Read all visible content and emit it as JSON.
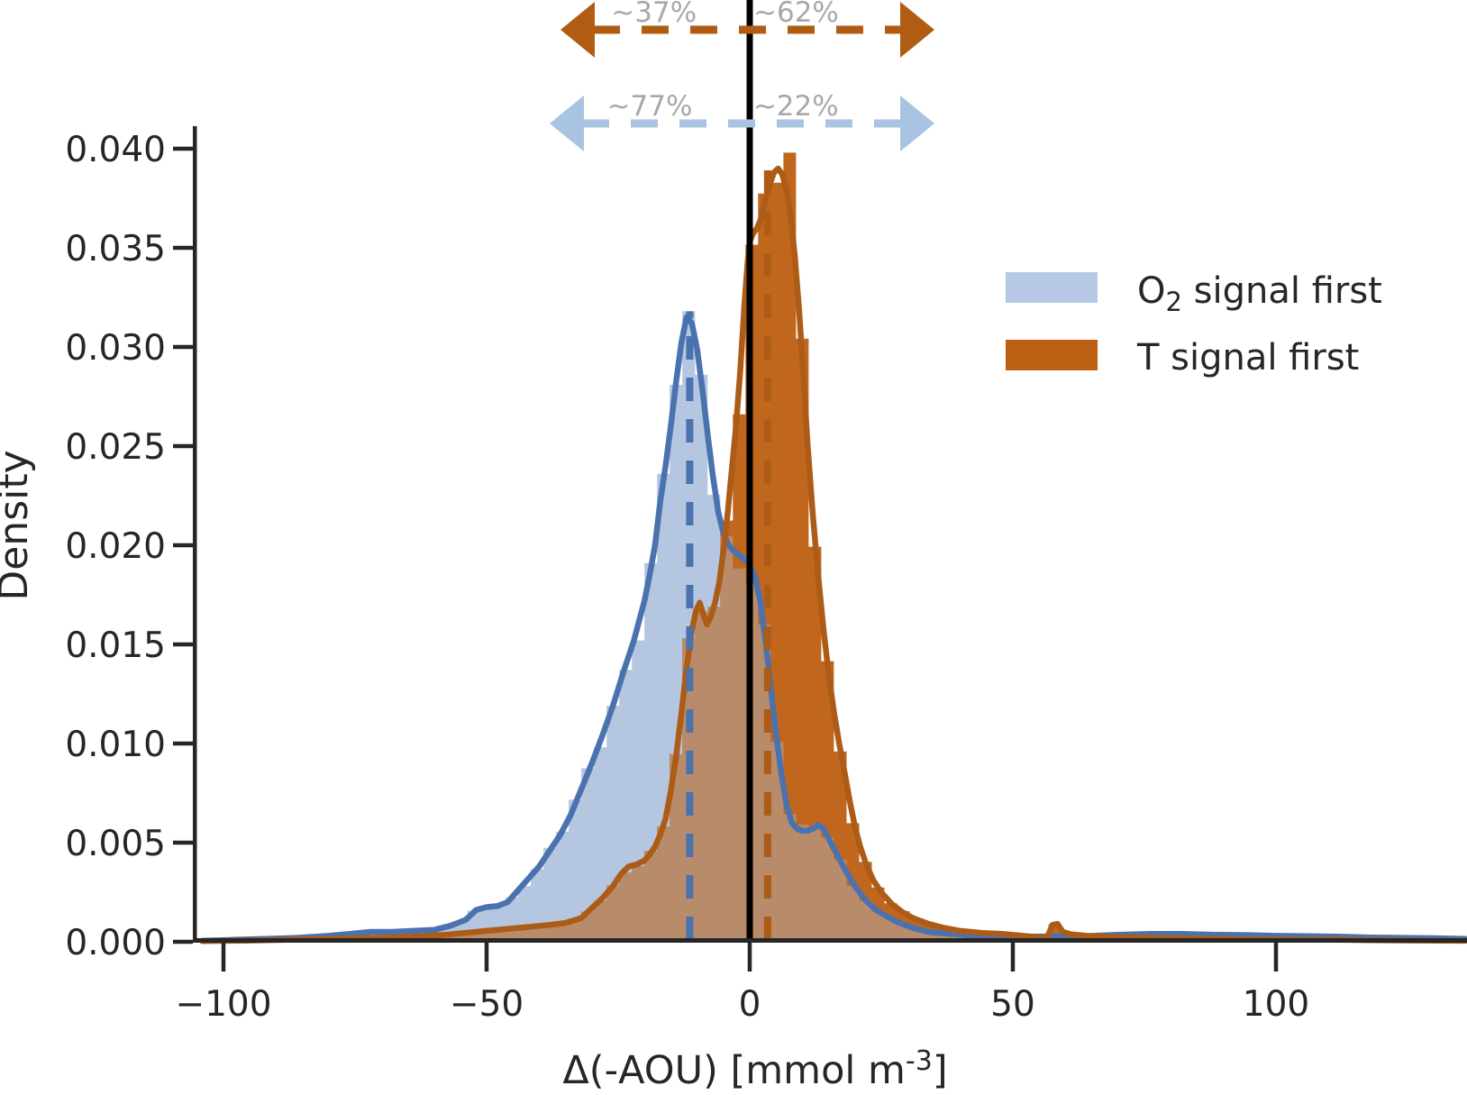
{
  "chart_data": {
    "type": "area",
    "title": "",
    "xlabel": {
      "prefix": "Δ(-AOU) [mmol m",
      "sup": "-3",
      "suffix": "]"
    },
    "ylabel": "Density",
    "xlim": [
      -105,
      136.5
    ],
    "ylim": [
      0,
      0.0415
    ],
    "grid": false,
    "legend_position": "upper right",
    "reference_line_x": 0,
    "overlap_color": "#b88c6a",
    "annotation_text_color": "#a8a8a8",
    "axis_color": "#262626",
    "xticks": [
      {
        "v": -100,
        "label": "−100"
      },
      {
        "v": -50,
        "label": "−50"
      },
      {
        "v": 0,
        "label": "0"
      },
      {
        "v": 50,
        "label": "50"
      },
      {
        "v": 100,
        "label": "100"
      }
    ],
    "yticks": [
      {
        "v": 0.0,
        "label": "0.000"
      },
      {
        "v": 0.005,
        "label": "0.005"
      },
      {
        "v": 0.01,
        "label": "0.010"
      },
      {
        "v": 0.015,
        "label": "0.015"
      },
      {
        "v": 0.02,
        "label": "0.020"
      },
      {
        "v": 0.025,
        "label": "0.025"
      },
      {
        "v": 0.03,
        "label": "0.030"
      },
      {
        "v": 0.035,
        "label": "0.035"
      },
      {
        "v": 0.04,
        "label": "0.040"
      }
    ],
    "series": [
      {
        "id": "o2",
        "name": "O2 signal first",
        "line_color": "#4a72ae",
        "fill_color": "#b5c6e0",
        "legend_swatch": "#b6c8e3",
        "arrow_color": "#a9c3e2",
        "median_x": -11.4,
        "median_top": 0.0318,
        "hist_peak": 0.0318,
        "annotation": {
          "left": "~77%",
          "right": "~22%"
        },
        "kde": [
          [
            -104,
            5e-05
          ],
          [
            -98,
            0.0001
          ],
          [
            -92,
            0.00015
          ],
          [
            -86,
            0.0002
          ],
          [
            -80,
            0.0003
          ],
          [
            -76,
            0.0004
          ],
          [
            -72,
            0.0005
          ],
          [
            -68,
            0.0005
          ],
          [
            -64,
            0.00055
          ],
          [
            -60,
            0.0006
          ],
          [
            -57,
            0.0008
          ],
          [
            -54,
            0.0011
          ],
          [
            -52,
            0.0016
          ],
          [
            -50,
            0.00175
          ],
          [
            -48,
            0.0018
          ],
          [
            -46,
            0.002
          ],
          [
            -44,
            0.0026
          ],
          [
            -42,
            0.0032
          ],
          [
            -40,
            0.0038
          ],
          [
            -38,
            0.0046
          ],
          [
            -36,
            0.0054
          ],
          [
            -34,
            0.0064
          ],
          [
            -32,
            0.0077
          ],
          [
            -30,
            0.009
          ],
          [
            -28,
            0.0104
          ],
          [
            -26,
            0.0119
          ],
          [
            -24,
            0.0136
          ],
          [
            -22,
            0.0152
          ],
          [
            -20,
            0.0172
          ],
          [
            -19,
            0.0185
          ],
          [
            -18,
            0.02
          ],
          [
            -17,
            0.0222
          ],
          [
            -16,
            0.024
          ],
          [
            -15,
            0.026
          ],
          [
            -14,
            0.0282
          ],
          [
            -13,
            0.0302
          ],
          [
            -12,
            0.0315
          ],
          [
            -11,
            0.0312
          ],
          [
            -10,
            0.0299
          ],
          [
            -9,
            0.0279
          ],
          [
            -8,
            0.0256
          ],
          [
            -7,
            0.0235
          ],
          [
            -6,
            0.0217
          ],
          [
            -5,
            0.0206
          ],
          [
            -4,
            0.02
          ],
          [
            -3,
            0.0197
          ],
          [
            -2,
            0.0195
          ],
          [
            -1,
            0.0193
          ],
          [
            0,
            0.019
          ],
          [
            1,
            0.0184
          ],
          [
            2,
            0.0172
          ],
          [
            3,
            0.0152
          ],
          [
            4,
            0.0128
          ],
          [
            5,
            0.0105
          ],
          [
            6,
            0.0085
          ],
          [
            7,
            0.0069
          ],
          [
            8,
            0.006
          ],
          [
            9,
            0.0057
          ],
          [
            10,
            0.0056
          ],
          [
            11,
            0.0056
          ],
          [
            12,
            0.0057
          ],
          [
            13,
            0.0059
          ],
          [
            14,
            0.0057
          ],
          [
            15,
            0.0052
          ],
          [
            16,
            0.0047
          ],
          [
            18,
            0.0037
          ],
          [
            20,
            0.0028
          ],
          [
            22,
            0.0021
          ],
          [
            24,
            0.0016
          ],
          [
            26,
            0.0013
          ],
          [
            28,
            0.001
          ],
          [
            31,
            0.0007
          ],
          [
            34,
            0.0005
          ],
          [
            38,
            0.0004
          ],
          [
            42,
            0.00032
          ],
          [
            46,
            0.00028
          ],
          [
            50,
            0.00027
          ],
          [
            55,
            0.00027
          ],
          [
            60,
            0.00028
          ],
          [
            65,
            0.0003
          ],
          [
            70,
            0.00035
          ],
          [
            76,
            0.0004
          ],
          [
            82,
            0.0004
          ],
          [
            88,
            0.00036
          ],
          [
            94,
            0.00034
          ],
          [
            100,
            0.0003
          ],
          [
            106,
            0.00028
          ],
          [
            112,
            0.00026
          ],
          [
            118,
            0.00022
          ],
          [
            124,
            0.0002
          ],
          [
            130,
            0.00018
          ],
          [
            136,
            0.00015
          ]
        ]
      },
      {
        "id": "t",
        "name": "T signal first",
        "line_color": "#ad5c17",
        "fill_color": "#c0671d",
        "legend_swatch": "#bd5f13",
        "arrow_color": "#b05c12",
        "median_x": 3.4,
        "median_top": 0.0396,
        "hist_peak": 0.0398,
        "annotation": {
          "left": "~37%",
          "right": "~62%"
        },
        "kde": [
          [
            -104,
            3e-05
          ],
          [
            -96,
            6e-05
          ],
          [
            -88,
            0.0001
          ],
          [
            -80,
            0.00014
          ],
          [
            -74,
            0.00018
          ],
          [
            -68,
            0.00022
          ],
          [
            -62,
            0.00028
          ],
          [
            -58,
            0.00035
          ],
          [
            -54,
            0.00045
          ],
          [
            -50,
            0.00055
          ],
          [
            -46,
            0.00065
          ],
          [
            -42,
            0.00075
          ],
          [
            -38,
            0.00085
          ],
          [
            -35,
            0.00095
          ],
          [
            -32,
            0.0012
          ],
          [
            -30,
            0.0017
          ],
          [
            -28,
            0.0022
          ],
          [
            -26,
            0.0028
          ],
          [
            -24.5,
            0.0034
          ],
          [
            -23,
            0.0038
          ],
          [
            -21.5,
            0.0039
          ],
          [
            -20,
            0.0041
          ],
          [
            -19,
            0.0044
          ],
          [
            -18,
            0.0048
          ],
          [
            -17,
            0.0054
          ],
          [
            -16,
            0.0062
          ],
          [
            -15,
            0.0076
          ],
          [
            -14,
            0.0093
          ],
          [
            -13,
            0.0115
          ],
          [
            -12,
            0.0138
          ],
          [
            -11,
            0.0157
          ],
          [
            -10.2,
            0.0167
          ],
          [
            -9.5,
            0.0171
          ],
          [
            -8.8,
            0.0165
          ],
          [
            -8.1,
            0.016
          ],
          [
            -7.4,
            0.0164
          ],
          [
            -6.6,
            0.0171
          ],
          [
            -5.8,
            0.0181
          ],
          [
            -5,
            0.0197
          ],
          [
            -4.2,
            0.0216
          ],
          [
            -3.4,
            0.0238
          ],
          [
            -2.6,
            0.026
          ],
          [
            -1.8,
            0.0288
          ],
          [
            -1,
            0.0322
          ],
          [
            -0.4,
            0.0343
          ],
          [
            0,
            0.0353
          ],
          [
            0.6,
            0.0357
          ],
          [
            1.4,
            0.036
          ],
          [
            2.2,
            0.0365
          ],
          [
            3,
            0.0374
          ],
          [
            3.8,
            0.0382
          ],
          [
            4.6,
            0.0388
          ],
          [
            5.4,
            0.039
          ],
          [
            6.2,
            0.0387
          ],
          [
            7,
            0.0379
          ],
          [
            7.8,
            0.0366
          ],
          [
            8.6,
            0.0345
          ],
          [
            9.4,
            0.0318
          ],
          [
            10.2,
            0.0285
          ],
          [
            11,
            0.0251
          ],
          [
            12,
            0.0215
          ],
          [
            13,
            0.0185
          ],
          [
            14,
            0.0158
          ],
          [
            15,
            0.0135
          ],
          [
            16,
            0.0116
          ],
          [
            17,
            0.01
          ],
          [
            18,
            0.0086
          ],
          [
            19,
            0.0071
          ],
          [
            20,
            0.0058
          ],
          [
            21,
            0.0048
          ],
          [
            22,
            0.004
          ],
          [
            23.5,
            0.0031
          ],
          [
            25,
            0.0025
          ],
          [
            27,
            0.0019
          ],
          [
            29,
            0.0015
          ],
          [
            31,
            0.0012
          ],
          [
            34,
            0.0009
          ],
          [
            37,
            0.0007
          ],
          [
            40,
            0.00055
          ],
          [
            44,
            0.00045
          ],
          [
            48,
            0.0004
          ],
          [
            52,
            0.0003
          ],
          [
            55,
            0.00022
          ],
          [
            56.5,
            0.0002
          ],
          [
            57.5,
            0.00085
          ],
          [
            58.5,
            0.0009
          ],
          [
            59.5,
            0.0005
          ],
          [
            61,
            0.00038
          ],
          [
            64,
            0.0003
          ],
          [
            68,
            0.00025
          ],
          [
            72,
            0.00022
          ],
          [
            76,
            0.0002
          ],
          [
            80,
            0.00018
          ],
          [
            85,
            0.00016
          ],
          [
            90,
            0.00014
          ],
          [
            95,
            0.00012
          ],
          [
            100,
            0.00011
          ],
          [
            106,
            0.0001
          ],
          [
            112,
            0.0001
          ],
          [
            118,
            8e-05
          ],
          [
            124,
            7e-05
          ],
          [
            130,
            6e-05
          ],
          [
            136,
            5e-05
          ]
        ]
      }
    ]
  },
  "legend": {
    "items": [
      {
        "main": "O",
        "sub": "2",
        "rest": " signal first"
      },
      {
        "label": "T signal first"
      }
    ]
  }
}
